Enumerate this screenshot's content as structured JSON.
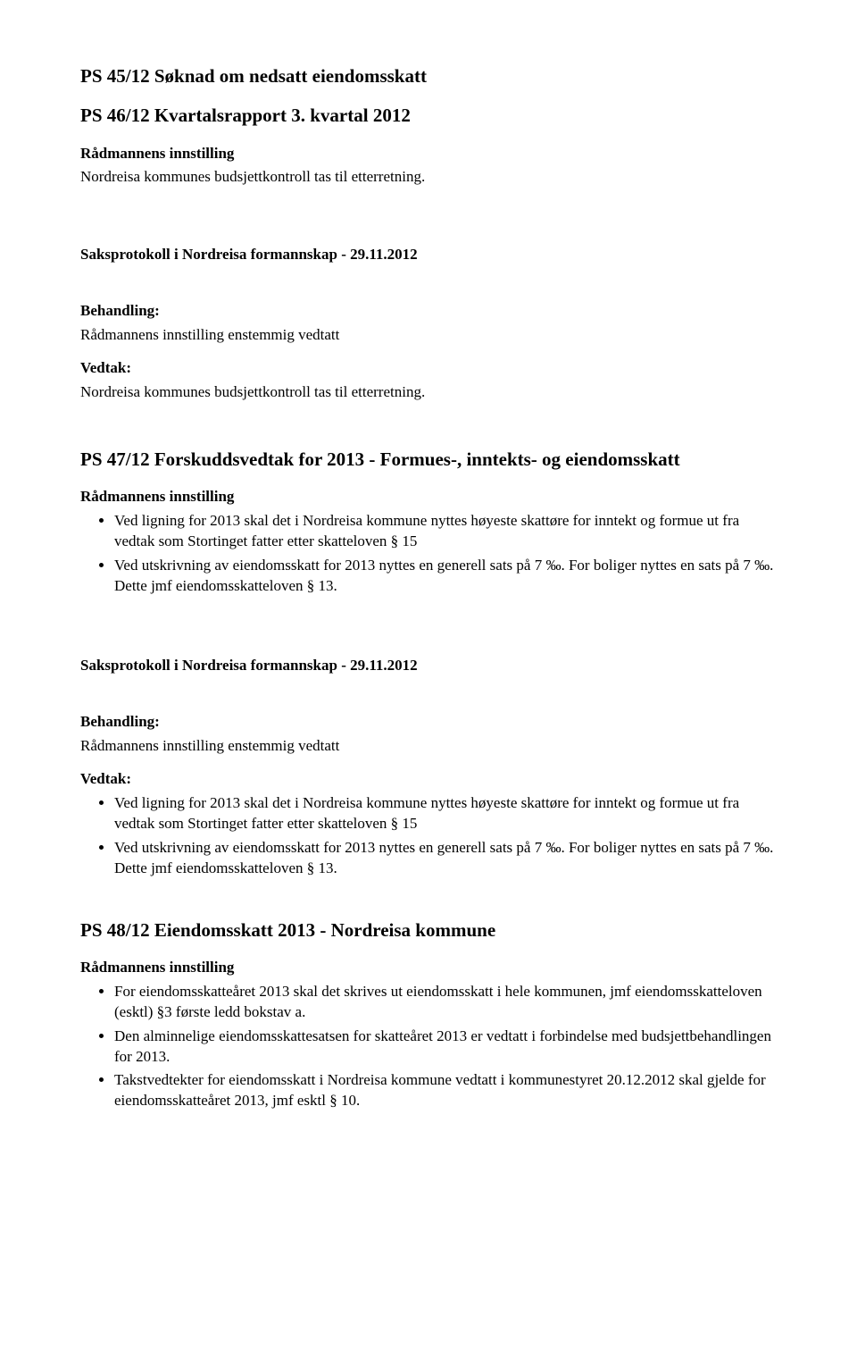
{
  "s45": {
    "heading": "PS 45/12 Søknad om nedsatt eiendomsskatt"
  },
  "s46": {
    "heading": "PS 46/12 Kvartalsrapport 3. kvartal 2012",
    "innstilling_label": "Rådmannens innstilling",
    "innstilling_text": "Nordreisa kommunes budsjettkontroll tas til etterretning.",
    "protokoll": "Saksprotokoll i Nordreisa formannskap - 29.11.2012",
    "behandling_label": "Behandling:",
    "behandling_text": "Rådmannens innstilling enstemmig vedtatt",
    "vedtak_label": "Vedtak:",
    "vedtak_text": "Nordreisa kommunes budsjettkontroll tas til etterretning."
  },
  "s47": {
    "heading": "PS 47/12 Forskuddsvedtak for 2013 - Formues-, inntekts- og eiendomsskatt",
    "innstilling_label": "Rådmannens innstilling",
    "innstilling_items": [
      "Ved ligning for 2013 skal det i Nordreisa kommune nyttes høyeste skattøre for inntekt og formue ut fra vedtak som Stortinget fatter etter skatteloven § 15",
      "Ved utskrivning av eiendomsskatt for 2013 nyttes en generell sats på 7 ‰. For boliger nyttes en sats på 7 ‰. Dette jmf eiendomsskatteloven § 13."
    ],
    "protokoll": "Saksprotokoll i Nordreisa formannskap - 29.11.2012",
    "behandling_label": "Behandling:",
    "behandling_text": "Rådmannens innstilling enstemmig vedtatt",
    "vedtak_label": "Vedtak:",
    "vedtak_items": [
      "Ved ligning for 2013 skal det i Nordreisa kommune nyttes høyeste skattøre for inntekt og formue ut fra vedtak som Stortinget fatter etter skatteloven § 15",
      "Ved utskrivning av eiendomsskatt for 2013 nyttes en generell sats på 7 ‰. For boliger nyttes en sats på 7 ‰. Dette jmf eiendomsskatteloven § 13."
    ]
  },
  "s48": {
    "heading": "PS 48/12 Eiendomsskatt 2013 - Nordreisa kommune",
    "innstilling_label": "Rådmannens innstilling",
    "innstilling_items": [
      "For eiendomsskatteåret 2013 skal det skrives ut eiendomsskatt i hele kommunen, jmf eiendomsskatteloven (esktl) §3 første ledd bokstav a.",
      "Den alminnelige eiendomsskattesatsen for skatteåret 2013 er vedtatt i forbindelse med budsjettbehandlingen for 2013.",
      "Takstvedtekter for eiendomsskatt i Nordreisa kommune vedtatt i kommunestyret 20.12.2012 skal gjelde for eiendomsskatteåret 2013, jmf esktl § 10."
    ]
  }
}
